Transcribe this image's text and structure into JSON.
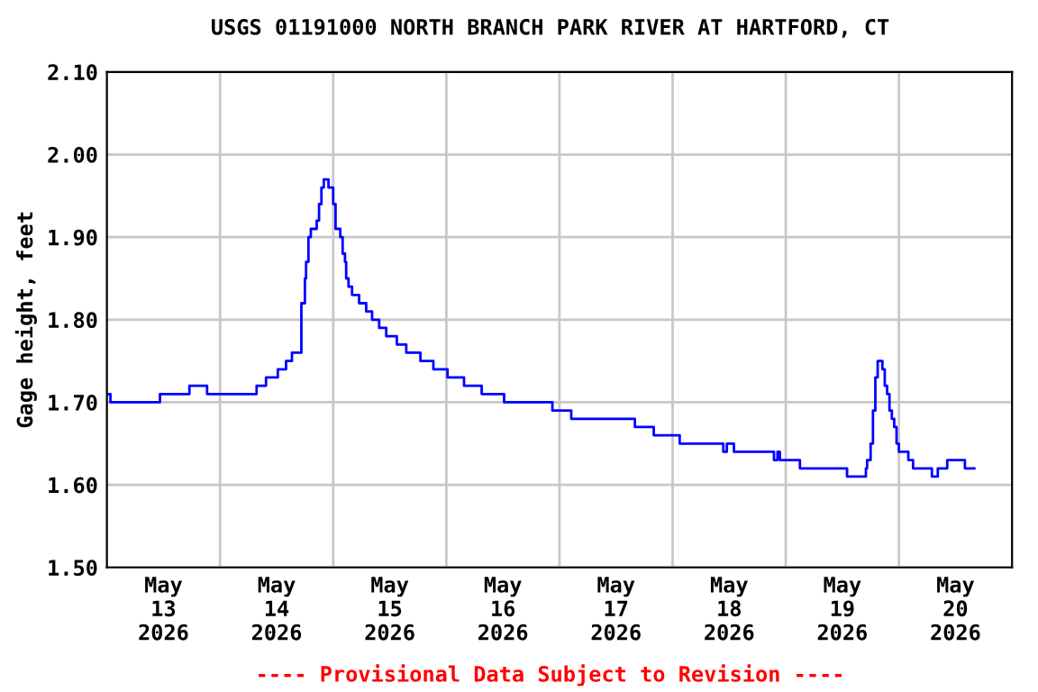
{
  "chart_data": {
    "type": "step",
    "title": "USGS 01191000 NORTH BRANCH PARK RIVER AT HARTFORD, CT",
    "ylabel": "Gage height, feet",
    "annotations": [
      "---- Provisional Data Subject to Revision ----"
    ],
    "series": [
      {
        "color": "#0000ff",
        "x": [
          "2026-05-13T00:00",
          "2026-05-13T00:45",
          "2026-05-13T11:15",
          "2026-05-13T17:30",
          "2026-05-13T21:15",
          "2026-05-14T07:45",
          "2026-05-14T09:45",
          "2026-05-14T12:15",
          "2026-05-14T14:00",
          "2026-05-14T15:15",
          "2026-05-14T17:15",
          "2026-05-14T18:00",
          "2026-05-14T18:15",
          "2026-05-14T18:45",
          "2026-05-14T19:15",
          "2026-05-14T20:30",
          "2026-05-14T21:00",
          "2026-05-14T21:30",
          "2026-05-14T22:00",
          "2026-05-14T23:00",
          "2026-05-15T00:00",
          "2026-05-15T00:30",
          "2026-05-15T01:30",
          "2026-05-15T02:00",
          "2026-05-15T02:30",
          "2026-05-15T02:45",
          "2026-05-15T03:15",
          "2026-05-15T04:00",
          "2026-05-15T05:30",
          "2026-05-15T07:00",
          "2026-05-15T08:15",
          "2026-05-15T09:45",
          "2026-05-15T11:15",
          "2026-05-15T13:30",
          "2026-05-15T15:30",
          "2026-05-15T18:30",
          "2026-05-15T21:15",
          "2026-05-16T00:15",
          "2026-05-16T03:45",
          "2026-05-16T07:30",
          "2026-05-16T12:15",
          "2026-05-16T22:30",
          "2026-05-17T02:30",
          "2026-05-17T16:00",
          "2026-05-17T20:00",
          "2026-05-18T01:30",
          "2026-05-18T10:45",
          "2026-05-18T11:30",
          "2026-05-18T13:00",
          "2026-05-18T21:30",
          "2026-05-18T22:15",
          "2026-05-18T22:45",
          "2026-05-19T03:00",
          "2026-05-19T13:00",
          "2026-05-19T17:00",
          "2026-05-19T17:15",
          "2026-05-19T18:00",
          "2026-05-19T18:30",
          "2026-05-19T19:00",
          "2026-05-19T19:30",
          "2026-05-19T20:30",
          "2026-05-19T21:00",
          "2026-05-19T21:30",
          "2026-05-19T22:00",
          "2026-05-19T22:30",
          "2026-05-19T23:00",
          "2026-05-19T23:30",
          "2026-05-20T00:00",
          "2026-05-20T02:00",
          "2026-05-20T03:00",
          "2026-05-20T07:00",
          "2026-05-20T08:15",
          "2026-05-20T10:15",
          "2026-05-20T14:00",
          "2026-05-20T16:00"
        ],
        "values": [
          1.71,
          1.7,
          1.71,
          1.72,
          1.71,
          1.72,
          1.73,
          1.74,
          1.75,
          1.76,
          1.82,
          1.85,
          1.87,
          1.9,
          1.91,
          1.92,
          1.94,
          1.96,
          1.97,
          1.96,
          1.94,
          1.91,
          1.9,
          1.88,
          1.87,
          1.85,
          1.84,
          1.83,
          1.82,
          1.81,
          1.8,
          1.79,
          1.78,
          1.77,
          1.76,
          1.75,
          1.74,
          1.73,
          1.72,
          1.71,
          1.7,
          1.69,
          1.68,
          1.67,
          1.66,
          1.65,
          1.64,
          1.65,
          1.64,
          1.63,
          1.64,
          1.63,
          1.62,
          1.61,
          1.62,
          1.63,
          1.65,
          1.69,
          1.73,
          1.75,
          1.74,
          1.72,
          1.71,
          1.69,
          1.68,
          1.67,
          1.65,
          1.64,
          1.63,
          1.62,
          1.61,
          1.62,
          1.63,
          1.62,
          1.62
        ]
      }
    ],
    "xlim": [
      "2026-05-13T00:00",
      "2026-05-21T00:00"
    ],
    "xticks": [
      {
        "value": "2026-05-13T12:00",
        "label": "May\n13\n2026"
      },
      {
        "value": "2026-05-14T12:00",
        "label": "May\n14\n2026"
      },
      {
        "value": "2026-05-15T12:00",
        "label": "May\n15\n2026"
      },
      {
        "value": "2026-05-16T12:00",
        "label": "May\n16\n2026"
      },
      {
        "value": "2026-05-17T12:00",
        "label": "May\n17\n2026"
      },
      {
        "value": "2026-05-18T12:00",
        "label": "May\n18\n2026"
      },
      {
        "value": "2026-05-19T12:00",
        "label": "May\n19\n2026"
      },
      {
        "value": "2026-05-20T12:00",
        "label": "May\n20\n2026"
      },
      {
        "value": "2026-05-14T00:00",
        "label": null
      },
      {
        "value": "2026-05-15T00:00",
        "label": null
      },
      {
        "value": "2026-05-16T00:00",
        "label": null
      },
      {
        "value": "2026-05-17T00:00",
        "label": null
      },
      {
        "value": "2026-05-18T00:00",
        "label": null
      },
      {
        "value": "2026-05-19T00:00",
        "label": null
      },
      {
        "value": "2026-05-20T00:00",
        "label": null
      }
    ],
    "ylim": [
      1.5,
      2.1
    ],
    "yticks": [
      {
        "value": 1.5,
        "label": "1.50"
      },
      {
        "value": 1.6,
        "label": "1.60"
      },
      {
        "value": 1.7,
        "label": "1.70"
      },
      {
        "value": 1.8,
        "label": "1.80"
      },
      {
        "value": 1.9,
        "label": "1.90"
      },
      {
        "value": 2.0,
        "label": "2.00"
      },
      {
        "value": 2.1,
        "label": "2.10"
      }
    ],
    "grid": true,
    "line_style": "solid"
  }
}
